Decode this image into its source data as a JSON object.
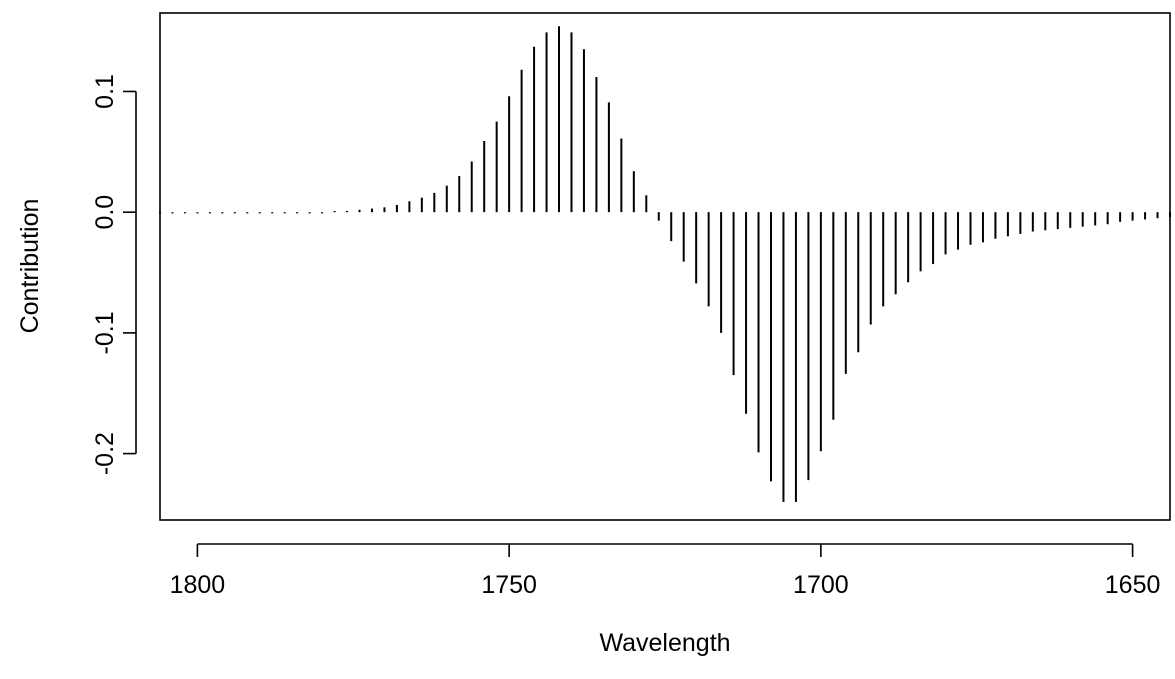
{
  "chart_data": {
    "type": "bar",
    "style": "vertical-line spikes from zero",
    "title": "",
    "xlabel": "Wavelength",
    "ylabel": "Contribution",
    "x_reversed": true,
    "xlim": [
      1806,
      1644
    ],
    "ylim": [
      -0.255,
      0.165
    ],
    "x_ticks": [
      1800,
      1750,
      1700,
      1650
    ],
    "y_ticks": [
      -0.2,
      -0.1,
      0.0,
      0.1
    ],
    "x_tick_labels": [
      "1800",
      "1750",
      "1700",
      "1650"
    ],
    "y_tick_labels": [
      "-0.2",
      "-0.1",
      "0.0",
      "0.1"
    ],
    "grid": false,
    "color": "#000000",
    "x": [
      1806,
      1804,
      1802,
      1800,
      1798,
      1796,
      1794,
      1792,
      1790,
      1788,
      1786,
      1784,
      1782,
      1780,
      1778,
      1776,
      1774,
      1772,
      1770,
      1768,
      1766,
      1764,
      1762,
      1760,
      1758,
      1756,
      1754,
      1752,
      1750,
      1748,
      1746,
      1744,
      1742,
      1740,
      1738,
      1736,
      1734,
      1732,
      1730,
      1728,
      1726,
      1724,
      1722,
      1720,
      1718,
      1716,
      1714,
      1712,
      1710,
      1708,
      1706,
      1704,
      1702,
      1700,
      1698,
      1696,
      1694,
      1692,
      1690,
      1688,
      1686,
      1684,
      1682,
      1680,
      1678,
      1676,
      1674,
      1672,
      1670,
      1668,
      1666,
      1664,
      1662,
      1660,
      1658,
      1656,
      1654,
      1652,
      1650,
      1648,
      1646,
      1644
    ],
    "values": [
      -0.001,
      -0.001,
      -0.001,
      -0.001,
      -0.001,
      -0.001,
      -0.001,
      -0.001,
      -0.001,
      -0.001,
      -0.001,
      0.0,
      0.0,
      0.0,
      0.001,
      0.001,
      0.002,
      0.003,
      0.004,
      0.006,
      0.009,
      0.012,
      0.016,
      0.022,
      0.03,
      0.042,
      0.059,
      0.075,
      0.096,
      0.118,
      0.137,
      0.149,
      0.154,
      0.149,
      0.135,
      0.112,
      0.091,
      0.061,
      0.034,
      0.014,
      -0.007,
      -0.024,
      -0.041,
      -0.059,
      -0.078,
      -0.1,
      -0.135,
      -0.167,
      -0.199,
      -0.223,
      -0.24,
      -0.24,
      -0.222,
      -0.198,
      -0.172,
      -0.134,
      -0.116,
      -0.093,
      -0.078,
      -0.068,
      -0.058,
      -0.049,
      -0.043,
      -0.035,
      -0.031,
      -0.027,
      -0.025,
      -0.022,
      -0.02,
      -0.018,
      -0.016,
      -0.015,
      -0.014,
      -0.013,
      -0.012,
      -0.011,
      -0.01,
      -0.008,
      -0.007,
      -0.006,
      -0.005,
      -0.004
    ]
  }
}
